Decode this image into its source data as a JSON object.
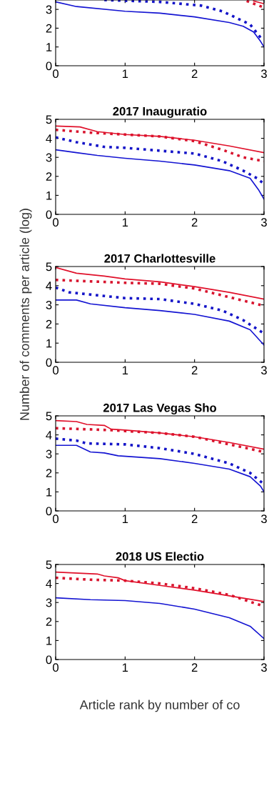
{
  "chart_data": [
    {
      "type": "line",
      "xlim": [
        0,
        3
      ],
      "xticks": [
        0,
        1,
        2,
        3
      ],
      "ylim": [
        0,
        3.5
      ],
      "yticks": [
        0,
        1,
        2,
        3
      ],
      "grid": false,
      "series": [
        {
          "color": "#1414d2",
          "line_style": "solid",
          "x": [
            0,
            0.3,
            1,
            1.5,
            2,
            2.5,
            2.7,
            2.85,
            2.95,
            3
          ],
          "values": [
            3.4,
            3.15,
            2.9,
            2.8,
            2.6,
            2.3,
            2.1,
            1.8,
            1.3,
            1.0
          ]
        },
        {
          "color": "#1414c8",
          "line_style": "dotted",
          "x": [
            0.7,
            1.5,
            2.1,
            2.4,
            2.8,
            2.95
          ],
          "values": [
            3.5,
            3.4,
            3.2,
            2.9,
            2.2,
            1.5
          ]
        },
        {
          "color": "#d8142e",
          "line_style": "dotted",
          "x": [
            2.75,
            3
          ],
          "values": [
            3.45,
            3.1
          ]
        },
        {
          "color": "#e0102a",
          "line_style": "solid",
          "x": [
            2.85,
            3
          ],
          "values": [
            3.45,
            3.3
          ]
        }
      ]
    },
    {
      "type": "line",
      "title": "2017 Inauguratio",
      "xlim": [
        0,
        3
      ],
      "xticks": [
        0,
        1,
        2,
        3
      ],
      "ylim": [
        0,
        5
      ],
      "yticks": [
        0,
        1,
        2,
        3,
        4,
        5
      ],
      "grid": false,
      "series": [
        {
          "color": "#1414d2",
          "line_style": "solid",
          "x": [
            0,
            0.3,
            0.6,
            1,
            1.5,
            2,
            2.5,
            2.8,
            2.92,
            3
          ],
          "values": [
            3.4,
            3.25,
            3.1,
            2.95,
            2.8,
            2.6,
            2.3,
            1.9,
            1.3,
            0.8
          ]
        },
        {
          "color": "#1414c8",
          "line_style": "dotted",
          "x": [
            0,
            0.3,
            0.7,
            1,
            1.5,
            2,
            2.4,
            2.7,
            2.9,
            3
          ],
          "values": [
            4.05,
            3.8,
            3.55,
            3.5,
            3.35,
            3.2,
            2.8,
            2.3,
            1.9,
            1.6
          ]
        },
        {
          "color": "#d8142e",
          "line_style": "dotted",
          "x": [
            0,
            0.5,
            1,
            1.5,
            2,
            2.4,
            2.7,
            3
          ],
          "values": [
            4.45,
            4.3,
            4.2,
            4.1,
            3.85,
            3.4,
            3.0,
            2.8
          ]
        },
        {
          "color": "#e0102a",
          "line_style": "solid",
          "x": [
            0,
            0.35,
            0.6,
            1,
            1.5,
            2,
            2.5,
            3
          ],
          "values": [
            4.65,
            4.6,
            4.35,
            4.2,
            4.1,
            3.9,
            3.6,
            3.25
          ]
        }
      ]
    },
    {
      "type": "line",
      "title": "2017 Charlottesville",
      "ylabel": "Number of comments per article (log)",
      "xlim": [
        0,
        3
      ],
      "xticks": [
        0,
        1,
        2,
        3
      ],
      "ylim": [
        0,
        5
      ],
      "yticks": [
        0,
        1,
        2,
        3,
        4,
        5
      ],
      "grid": false,
      "series": [
        {
          "color": "#1414d2",
          "line_style": "solid",
          "x": [
            0,
            0.3,
            0.5,
            1,
            1.5,
            2,
            2.5,
            2.8,
            3
          ],
          "values": [
            3.25,
            3.25,
            3.05,
            2.85,
            2.7,
            2.5,
            2.15,
            1.7,
            0.9
          ]
        },
        {
          "color": "#1414c8",
          "line_style": "dotted",
          "x": [
            0,
            0.2,
            1,
            1.5,
            2,
            2.4,
            2.7,
            3
          ],
          "values": [
            3.9,
            3.65,
            3.35,
            3.3,
            3.05,
            2.7,
            2.2,
            1.5
          ]
        },
        {
          "color": "#d8142e",
          "line_style": "dotted",
          "x": [
            0,
            1,
            1.5,
            2,
            2.5,
            3
          ],
          "values": [
            4.3,
            4.15,
            4.1,
            3.85,
            3.4,
            2.95
          ]
        },
        {
          "color": "#e0102a",
          "line_style": "solid",
          "x": [
            0,
            0.3,
            0.7,
            1,
            1.5,
            2,
            2.5,
            3
          ],
          "values": [
            4.95,
            4.65,
            4.5,
            4.35,
            4.2,
            3.95,
            3.65,
            3.3
          ]
        }
      ]
    },
    {
      "type": "line",
      "title": "2017 Las Vegas Sho",
      "xlim": [
        0,
        3
      ],
      "xticks": [
        0,
        1,
        2,
        3
      ],
      "ylim": [
        0,
        5
      ],
      "yticks": [
        0,
        1,
        2,
        3,
        4,
        5
      ],
      "grid": false,
      "series": [
        {
          "color": "#1414d2",
          "line_style": "solid",
          "x": [
            0,
            0.3,
            0.5,
            0.7,
            0.9,
            1.5,
            2,
            2.5,
            2.8,
            2.95,
            3
          ],
          "values": [
            3.45,
            3.45,
            3.1,
            3.05,
            2.9,
            2.75,
            2.5,
            2.2,
            1.8,
            1.3,
            1.0
          ]
        },
        {
          "color": "#1414c8",
          "line_style": "dotted",
          "x": [
            0,
            0.3,
            0.45,
            1,
            1.5,
            2,
            2.5,
            2.8,
            3
          ],
          "values": [
            3.8,
            3.7,
            3.55,
            3.5,
            3.3,
            3.0,
            2.5,
            2.0,
            1.4
          ]
        },
        {
          "color": "#d8142e",
          "line_style": "dotted",
          "x": [
            0,
            0.8,
            1,
            1.5,
            2,
            2.5,
            3
          ],
          "values": [
            4.35,
            4.25,
            4.2,
            4.1,
            3.9,
            3.5,
            3.1
          ]
        },
        {
          "color": "#e0102a",
          "line_style": "solid",
          "x": [
            0,
            0.3,
            0.45,
            0.7,
            0.8,
            1,
            1.5,
            2,
            2.5,
            3
          ],
          "values": [
            4.75,
            4.7,
            4.55,
            4.5,
            4.3,
            4.25,
            4.1,
            3.9,
            3.6,
            3.25
          ]
        }
      ]
    },
    {
      "type": "line",
      "title": "2018 US Electio",
      "xlabel": "Article rank by number of co",
      "xlim": [
        0,
        3
      ],
      "xticks": [
        0,
        1,
        2,
        3
      ],
      "ylim": [
        0,
        5
      ],
      "yticks": [
        0,
        1,
        2,
        3,
        4,
        5
      ],
      "grid": false,
      "series": [
        {
          "color": "#1414d2",
          "line_style": "solid",
          "x": [
            0,
            0.5,
            1,
            1.5,
            2,
            2.5,
            2.8,
            3
          ],
          "values": [
            3.25,
            3.15,
            3.1,
            2.95,
            2.65,
            2.2,
            1.75,
            1.1
          ]
        },
        {
          "color": "#d8142e",
          "line_style": "dotted",
          "x": [
            0,
            0.5,
            1,
            1.5,
            2,
            2.5,
            3
          ],
          "values": [
            4.3,
            4.2,
            4.15,
            4.0,
            3.75,
            3.4,
            2.8
          ]
        },
        {
          "color": "#e0102a",
          "line_style": "solid",
          "x": [
            0,
            0.6,
            0.7,
            0.9,
            1,
            1.5,
            2,
            2.5,
            3
          ],
          "values": [
            4.6,
            4.5,
            4.4,
            4.3,
            4.15,
            3.9,
            3.65,
            3.35,
            3.05
          ]
        }
      ]
    }
  ]
}
